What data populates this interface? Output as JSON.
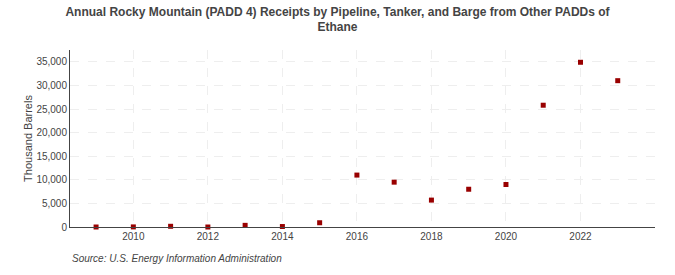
{
  "chart_data": {
    "type": "scatter",
    "title": "Annual Rocky Mountain (PADD 4) Receipts by Pipeline, Tanker, and Barge from Other PADDs of\nEthane",
    "ylabel": "Thousand Barrels",
    "annotations": [
      "Source: U.S. Energy Information Administration"
    ],
    "x": [
      2009,
      2010,
      2011,
      2012,
      2013,
      2014,
      2015,
      2016,
      2017,
      2018,
      2019,
      2020,
      2021,
      2022,
      2023
    ],
    "values": [
      0,
      20,
      150,
      0,
      350,
      100,
      900,
      11000,
      9500,
      5700,
      8000,
      9000,
      25800,
      34900,
      31000
    ],
    "color": "#990000",
    "marker": "square",
    "xlim": [
      2008.3,
      2024.0
    ],
    "xticks": [
      2010,
      2012,
      2014,
      2016,
      2018,
      2020,
      2022
    ],
    "ylim": [
      0,
      37500
    ],
    "yticks": [
      0,
      {
        "value": 5000,
        "label": "5,000"
      },
      {
        "value": 10000,
        "label": "10,000"
      },
      {
        "value": 15000,
        "label": "15,000"
      },
      {
        "value": 20000,
        "label": "20,000"
      },
      {
        "value": 25000,
        "label": "25,000"
      },
      {
        "value": 30000,
        "label": "30,000"
      },
      {
        "value": 35000,
        "label": "35,000"
      }
    ],
    "grid": true
  }
}
